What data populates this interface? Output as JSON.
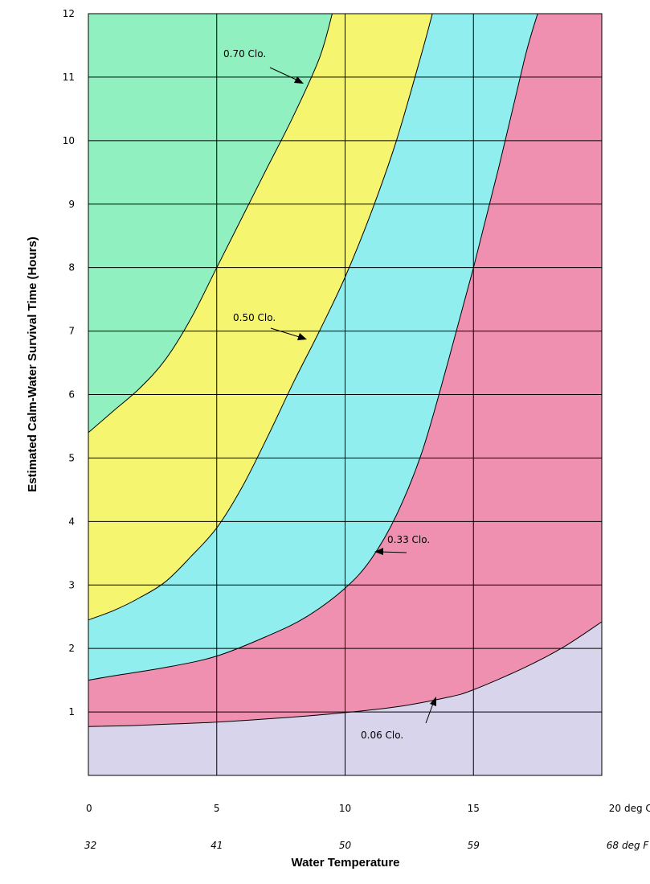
{
  "chart_data": {
    "type": "area",
    "title": "",
    "xlabel": "Water Temperature",
    "ylabel": "Estimated Calm-Water Survival Time (Hours)",
    "x_celsius_ticks": [
      "0",
      "5",
      "10",
      "15",
      "20"
    ],
    "x_celsius_unit": "deg C",
    "x_fahrenheit_ticks": [
      "32",
      "41",
      "50",
      "59",
      "68"
    ],
    "x_fahrenheit_unit": "deg F",
    "y_ticks": [
      "1",
      "2",
      "3",
      "4",
      "5",
      "6",
      "7",
      "8",
      "9",
      "10",
      "11",
      "12"
    ],
    "xlim": [
      0,
      20
    ],
    "ylim": [
      0,
      12
    ],
    "grid": true,
    "series": [
      {
        "name": "0.06 Clo.",
        "color": "#f090b0",
        "below_color": "#d8d4ec",
        "x": [
          0,
          2,
          5,
          8,
          10,
          12,
          14,
          15,
          17,
          18.5,
          20
        ],
        "y": [
          0.77,
          0.79,
          0.84,
          0.92,
          0.99,
          1.08,
          1.23,
          1.35,
          1.7,
          2.02,
          2.42
        ]
      },
      {
        "name": "0.33 Clo.",
        "color": "#90eeee",
        "x": [
          0,
          1,
          3,
          5,
          7,
          8.5,
          10,
          11,
          12,
          13,
          14,
          15,
          16,
          17,
          17.5
        ],
        "y": [
          1.5,
          1.57,
          1.7,
          1.88,
          2.2,
          2.5,
          2.95,
          3.4,
          4.1,
          5.1,
          6.5,
          8.0,
          9.6,
          11.3,
          12
        ]
      },
      {
        "name": "0.50 Clo.",
        "color": "#f5f570",
        "x": [
          0,
          1,
          2,
          3,
          4,
          5,
          6,
          7,
          8,
          9,
          10,
          11,
          12,
          13,
          13.4
        ],
        "y": [
          2.45,
          2.6,
          2.8,
          3.05,
          3.45,
          3.9,
          4.55,
          5.35,
          6.2,
          7.0,
          7.85,
          8.85,
          10.0,
          11.4,
          12
        ]
      },
      {
        "name": "0.70 Clo.",
        "color": "#90f0c0",
        "x": [
          0,
          1,
          2,
          3,
          4,
          5,
          6,
          7,
          8,
          9,
          9.5
        ],
        "y": [
          5.4,
          5.75,
          6.1,
          6.55,
          7.2,
          8.0,
          8.8,
          9.6,
          10.4,
          11.3,
          12
        ]
      }
    ],
    "annotations": [
      {
        "text": "0.70 Clo."
      },
      {
        "text": "0.50 Clo."
      },
      {
        "text": "0.33 Clo."
      },
      {
        "text": "0.06 Clo."
      }
    ]
  }
}
